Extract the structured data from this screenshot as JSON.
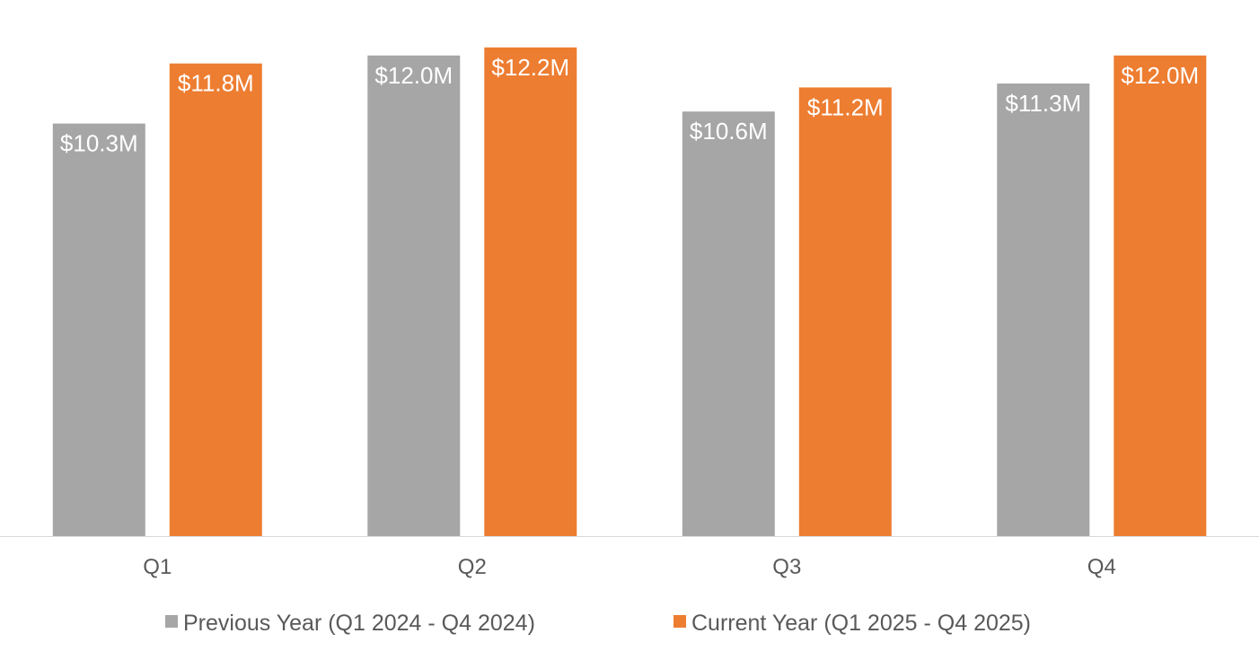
{
  "chart_data": {
    "type": "bar",
    "title": "",
    "xlabel": "",
    "ylabel": "",
    "ylim": [
      0,
      12.6
    ],
    "grid": false,
    "legend_position": "bottom-center",
    "categories": [
      "Q1",
      "Q2",
      "Q3",
      "Q4"
    ],
    "series": [
      {
        "name": "Previous Year (Q1 2024 - Q4 2024)",
        "color": "#A6A6A6",
        "values": [
          10.3,
          12.0,
          10.6,
          11.3
        ],
        "labels": [
          "$10.3M",
          "$12.0M",
          "$10.6M",
          "$11.3M"
        ]
      },
      {
        "name": "Current Year (Q1 2025 - Q4 2025)",
        "color": "#ED7D31",
        "values": [
          11.8,
          12.2,
          11.2,
          12.0
        ],
        "labels": [
          "$11.8M",
          "$12.2M",
          "$11.2M",
          "$12.0M"
        ]
      }
    ],
    "axis_color": "#D9D9D9"
  }
}
